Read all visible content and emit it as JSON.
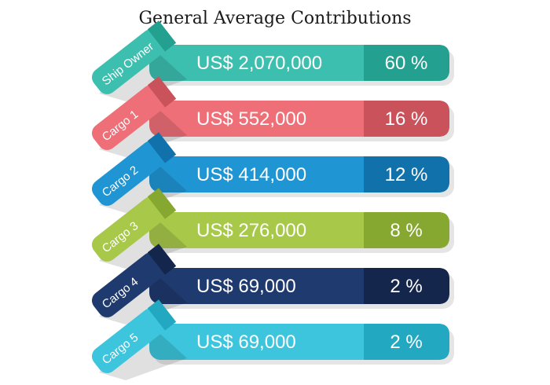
{
  "title": "General Average Contributions",
  "rows": [
    {
      "label": "Ship Owner",
      "amount": "US$ 2,070,000",
      "percent": "60  %",
      "color": "#3dbfb0",
      "dark": "#23a090"
    },
    {
      "label": "Cargo 1",
      "amount": "US$   552,000",
      "percent": "16  %",
      "color": "#ee6f77",
      "dark": "#c9525b"
    },
    {
      "label": "Cargo 2",
      "amount": "US$   414,000",
      "percent": "12  %",
      "color": "#1f96d3",
      "dark": "#1172ab"
    },
    {
      "label": "Cargo 3",
      "amount": "US$   276,000",
      "percent": "8  %",
      "color": "#a8c84a",
      "dark": "#86a730"
    },
    {
      "label": "Cargo 4",
      "amount": "US$    69,000",
      "percent": "2  %",
      "color": "#1f3a6e",
      "dark": "#14264c"
    },
    {
      "label": "Cargo 5",
      "amount": "US$    69,000",
      "percent": "2  %",
      "color": "#3cc5dc",
      "dark": "#22a9c1"
    }
  ]
}
